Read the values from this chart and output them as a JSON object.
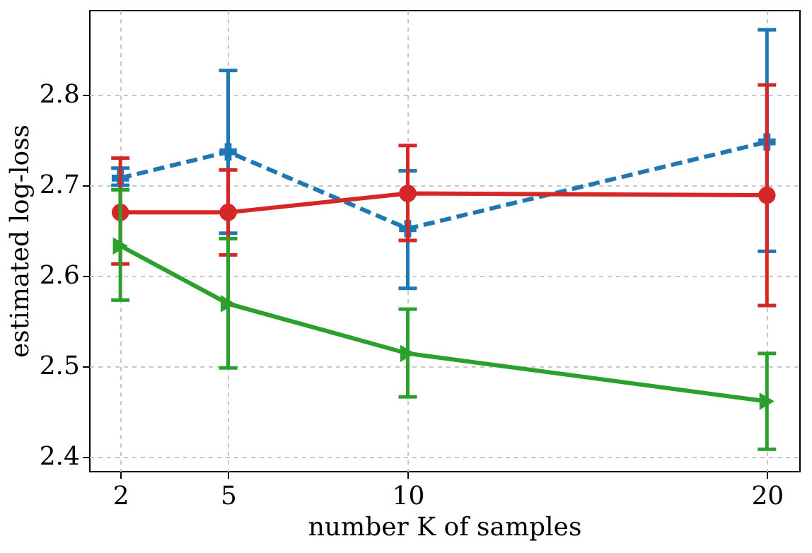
{
  "chart_data": {
    "type": "line",
    "xlabel": "number K of samples",
    "ylabel": "estimated log-loss",
    "x": [
      2,
      5,
      10,
      20
    ],
    "xlim": [
      1.13,
      20.9
    ],
    "xticks": [
      2,
      5,
      10,
      20
    ],
    "ylim": [
      2.384,
      2.894
    ],
    "yticks": [
      2.4,
      2.5,
      2.6,
      2.7,
      2.8
    ],
    "grid": true,
    "series": [
      {
        "color": "#1f77b4",
        "marker": "cross",
        "line_style": "dashed",
        "values": [
          2.708,
          2.737,
          2.652,
          2.748
        ],
        "errors": [
          [
            2.7,
            2.719
          ],
          [
            2.647,
            2.827
          ],
          [
            2.586,
            2.716
          ],
          [
            2.627,
            2.872
          ]
        ]
      },
      {
        "color": "#d62728",
        "marker": "circle",
        "line_style": "solid",
        "values": [
          2.67,
          2.67,
          2.691,
          2.689
        ],
        "errors": [
          [
            2.613,
            2.73
          ],
          [
            2.623,
            2.717
          ],
          [
            2.639,
            2.744
          ],
          [
            2.567,
            2.811
          ]
        ]
      },
      {
        "color": "#2ca02c",
        "marker": "triangle",
        "line_style": "solid",
        "values": [
          2.633,
          2.569,
          2.514,
          2.461
        ],
        "errors": [
          [
            2.573,
            2.695
          ],
          [
            2.498,
            2.641
          ],
          [
            2.466,
            2.563
          ],
          [
            2.408,
            2.514
          ]
        ]
      }
    ]
  }
}
